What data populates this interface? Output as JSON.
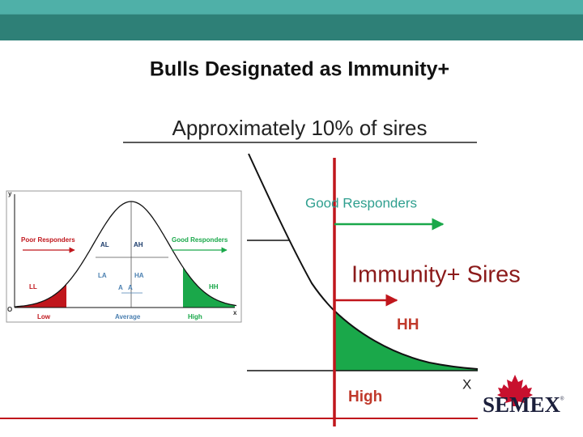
{
  "header": {
    "title": "Bulls Designated as Immunity+",
    "subtitle": "Approximately 10% of sires"
  },
  "small_chart": {
    "y_axis": "y",
    "x_axis": "x",
    "origin": "O",
    "poor_responders": "Poor Responders",
    "good_responders": "Good Responders",
    "al": "AL",
    "ah": "AH",
    "la": "LA",
    "ha": "HA",
    "a_left": "A",
    "a_right": "A",
    "ll": "LL",
    "hh": "HH",
    "low": "Low",
    "average": "Average",
    "high": "High"
  },
  "large_chart": {
    "good_responders": "Good Responders",
    "callout": "Immunity+ Sires",
    "hh": "HH",
    "high": "High",
    "x_axis": "X"
  },
  "logo": {
    "brand": "SEMEX",
    "mark": "®"
  }
}
